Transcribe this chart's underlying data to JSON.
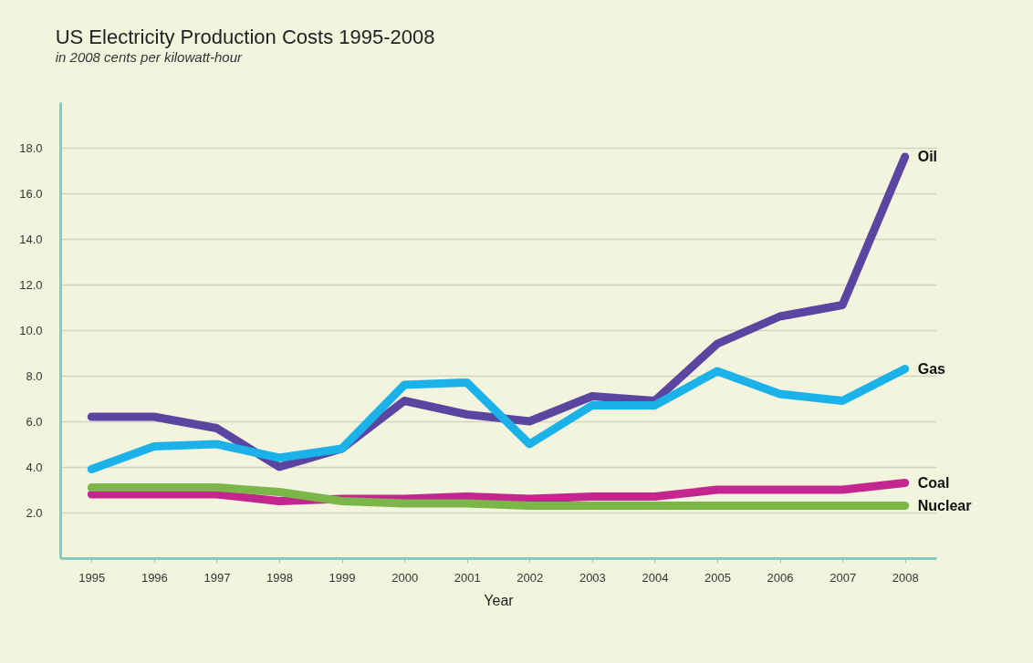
{
  "chart_data": {
    "type": "line",
    "title": "US Electricity Production Costs 1995-2008",
    "subtitle": "in 2008 cents per kilowatt-hour",
    "xlabel": "Year",
    "categories": [
      "1995",
      "1996",
      "1997",
      "1998",
      "1999",
      "2000",
      "2001",
      "2002",
      "2003",
      "2004",
      "2005",
      "2006",
      "2007",
      "2008"
    ],
    "series": [
      {
        "name": "Oil",
        "color": "#5a45a0",
        "values": [
          6.2,
          6.2,
          5.7,
          4.0,
          4.8,
          6.9,
          6.3,
          6.0,
          7.1,
          6.9,
          9.4,
          10.6,
          11.1,
          17.6
        ]
      },
      {
        "name": "Gas",
        "color": "#1ab2e8",
        "values": [
          3.9,
          4.9,
          5.0,
          4.4,
          4.8,
          7.6,
          7.7,
          5.0,
          6.7,
          6.7,
          8.2,
          7.2,
          6.9,
          8.3
        ]
      },
      {
        "name": "Coal",
        "color": "#c4268f",
        "values": [
          2.8,
          2.8,
          2.8,
          2.5,
          2.6,
          2.6,
          2.7,
          2.6,
          2.7,
          2.7,
          3.0,
          3.0,
          3.0,
          3.3
        ]
      },
      {
        "name": "Nuclear",
        "color": "#7ab648",
        "values": [
          3.1,
          3.1,
          3.1,
          2.9,
          2.5,
          2.4,
          2.4,
          2.3,
          2.3,
          2.3,
          2.3,
          2.3,
          2.3,
          2.3
        ]
      }
    ],
    "ylim": [
      0,
      20
    ],
    "yticks": [
      {
        "value": 2,
        "label": "2.0"
      },
      {
        "value": 4,
        "label": "4.0"
      },
      {
        "value": 6,
        "label": "6.0"
      },
      {
        "value": 8,
        "label": "8.0"
      },
      {
        "value": 10,
        "label": "10.0"
      },
      {
        "value": 12,
        "label": "12.0"
      },
      {
        "value": 14,
        "label": "14.0"
      },
      {
        "value": 16,
        "label": "16.0"
      },
      {
        "value": 18,
        "label": "18.0"
      }
    ],
    "grid": "y",
    "legend": false,
    "line_style": "solid",
    "marker": "none"
  }
}
